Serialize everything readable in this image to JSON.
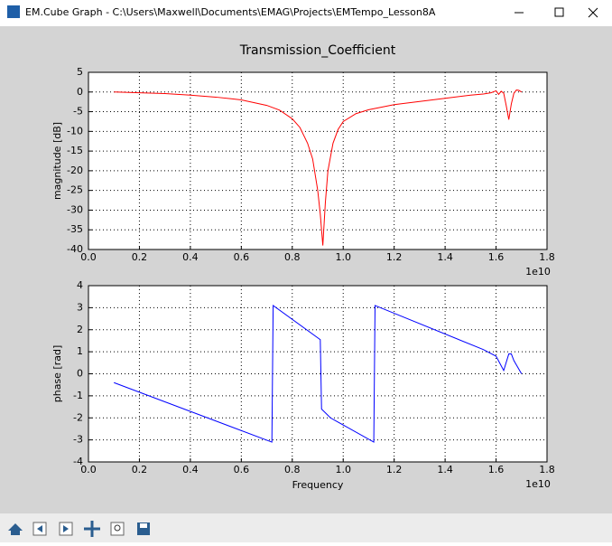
{
  "window": {
    "title": "EM.Cube Graph - C:\\Users\\Maxwell\\Documents\\EMAG\\Projects\\EMTempo_Lesson8A"
  },
  "chart_data": [
    {
      "type": "line",
      "title": "Transmission_Coefficient",
      "y_label": "magnitude [dB]",
      "x_offset_label": "1e10",
      "x": [
        0.1,
        0.2,
        0.3,
        0.4,
        0.5,
        0.6,
        0.7,
        0.75,
        0.8,
        0.83,
        0.86,
        0.88,
        0.9,
        0.91,
        0.92,
        0.93,
        0.94,
        0.96,
        0.98,
        1.0,
        1.05,
        1.1,
        1.2,
        1.3,
        1.4,
        1.5,
        1.55,
        1.58,
        1.6,
        1.61,
        1.62,
        1.63,
        1.64,
        1.65,
        1.66,
        1.67,
        1.68,
        1.69,
        1.7
      ],
      "series": [
        {
          "color": "#ff0000",
          "values": [
            0,
            -0.2,
            -0.4,
            -0.8,
            -1.3,
            -2,
            -3.4,
            -4.6,
            -6.8,
            -9,
            -13,
            -17,
            -25,
            -31,
            -39,
            -28,
            -20,
            -13,
            -9.5,
            -7.5,
            -5.5,
            -4.5,
            -3.2,
            -2.4,
            -1.6,
            -0.8,
            -0.5,
            -0.2,
            0.3,
            -0.6,
            0.2,
            -0.3,
            -3.5,
            -7,
            -3,
            -0.3,
            0.5,
            0.4,
            0
          ]
        }
      ],
      "xlim": [
        0,
        1.8
      ],
      "xticks": [
        {
          "value": 0,
          "label": "0.0"
        },
        0.2,
        0.4,
        0.6,
        0.8,
        {
          "value": 1,
          "label": "1.0"
        },
        1.2,
        1.4,
        1.6,
        1.8
      ],
      "ylim": [
        -40,
        5
      ],
      "yticks": [
        -40,
        -35,
        -30,
        -25,
        -20,
        -15,
        -10,
        -5,
        0,
        5
      ],
      "grid": true
    },
    {
      "type": "line",
      "x_label": "Frequency",
      "y_label": "phase [rad]",
      "x_offset_label": "1e10",
      "x": [
        0.1,
        0.72,
        0.725,
        0.91,
        0.915,
        0.95,
        1.12,
        1.125,
        1.55,
        1.6,
        1.63,
        1.65,
        1.66,
        1.67,
        1.7
      ],
      "series": [
        {
          "color": "#0000ff",
          "values": [
            -0.4,
            -3.1,
            3.1,
            1.55,
            -1.6,
            -2.0,
            -3.1,
            3.1,
            1.1,
            0.8,
            0.15,
            0.9,
            0.9,
            0.6,
            0
          ]
        }
      ],
      "xlim": [
        0,
        1.8
      ],
      "xticks": [
        {
          "value": 0,
          "label": "0.0"
        },
        0.2,
        0.4,
        0.6,
        0.8,
        {
          "value": 1,
          "label": "1.0"
        },
        1.2,
        1.4,
        1.6,
        1.8
      ],
      "ylim": [
        -4,
        4
      ],
      "yticks": [
        -4,
        -3,
        -2,
        -1,
        0,
        1,
        2,
        3,
        4
      ],
      "grid": true
    }
  ]
}
